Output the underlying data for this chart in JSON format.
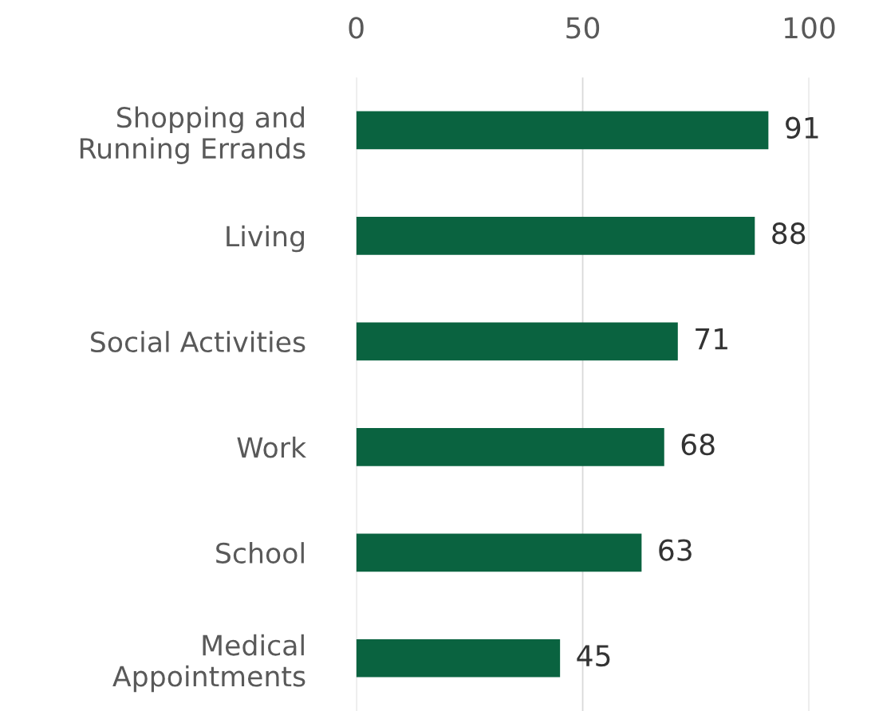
{
  "chart_data": {
    "type": "bar",
    "orientation": "horizontal",
    "categories": [
      "Shopping and\nRunning Errands",
      "Living",
      "Social Activities",
      "Work",
      "School",
      "Medical\nAppointments"
    ],
    "values": [
      91,
      88,
      71,
      68,
      63,
      45
    ],
    "color": "#0a6340",
    "xlim": [
      0,
      100
    ],
    "xticks": [
      0,
      50,
      100
    ],
    "grid": "x",
    "data_labels": true,
    "legend": false
  }
}
